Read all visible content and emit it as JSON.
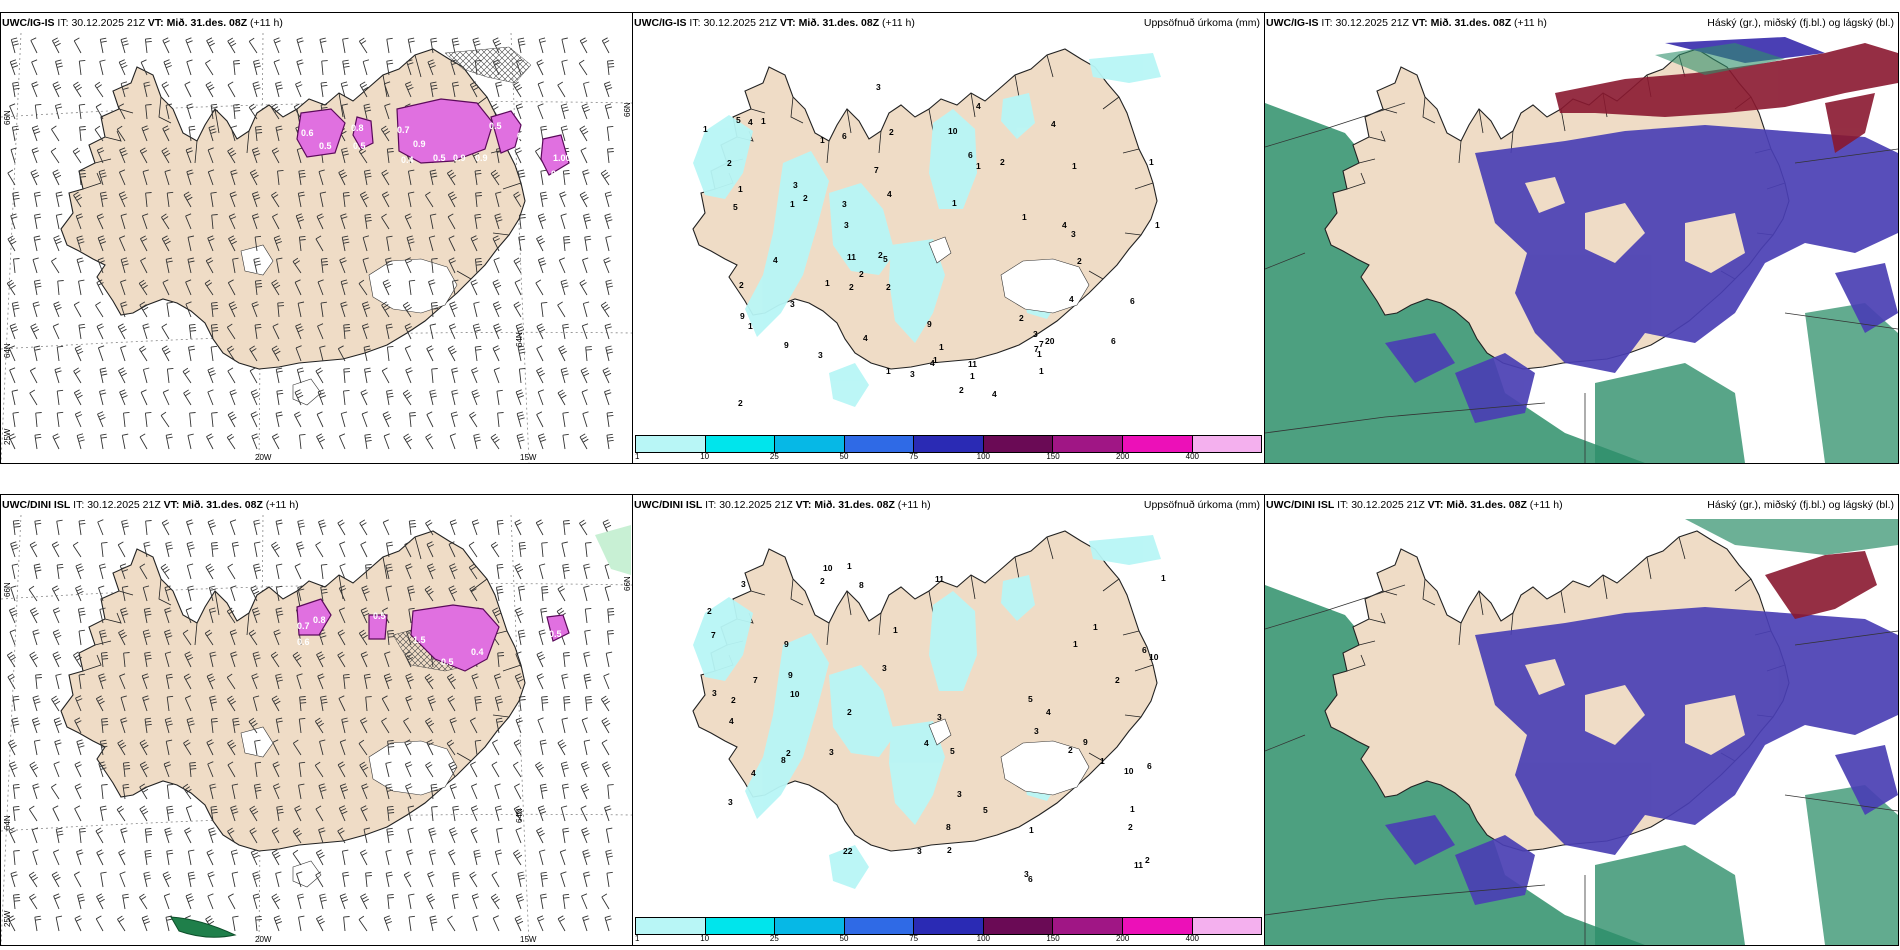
{
  "panels": {
    "p1": {
      "model": "UWC/IG-IS",
      "it_label": "IT:",
      "it_value": "30.12.2025 21Z",
      "vt_label": "VT:",
      "vt_value": "Mið. 31.des. 08Z",
      "lead": "(+11 h)"
    },
    "p2": {
      "model": "UWC/IG-IS",
      "it_label": "IT:",
      "it_value": "30.12.2025 21Z",
      "vt_label": "VT:",
      "vt_value": "Mið. 31.des. 08Z",
      "lead": "(+11 h)",
      "right_title": "Uppsöfnuð úrkoma (mm)"
    },
    "p3": {
      "model": "UWC/IG-IS",
      "it_label": "IT:",
      "it_value": "30.12.2025 21Z",
      "vt_label": "VT:",
      "vt_value": "Mið. 31.des. 08Z",
      "lead": "(+11 h)",
      "right_title": "Háský (gr.), miðský (fj.bl.) og lágský (bl.)"
    },
    "p4": {
      "model": "UWC/DINI ISL",
      "it_label": "IT:",
      "it_value": "30.12.2025 21Z",
      "vt_label": "VT:",
      "vt_value": "Mið. 31.des. 08Z",
      "lead": "(+11 h)"
    },
    "p5": {
      "model": "UWC/DINI ISL",
      "it_label": "IT:",
      "it_value": "30.12.2025 21Z",
      "vt_label": "VT:",
      "vt_value": "Mið. 31.des. 08Z",
      "lead": "(+11 h)",
      "right_title": "Uppsöfnuð úrkoma (mm)"
    },
    "p6": {
      "model": "UWC/DINI ISL",
      "it_label": "IT:",
      "it_value": "30.12.2025 21Z",
      "vt_label": "VT:",
      "vt_value": "Mið. 31.des. 08Z",
      "lead": "(+11 h)",
      "right_title": "Háský (gr.), miðský (fj.bl.) og lágský (bl.)"
    }
  },
  "axes": {
    "lat66": "66N",
    "lat64": "64N",
    "lon25": "25W",
    "lon20": "20W",
    "lon15": "15W"
  },
  "colorbar": {
    "colors": [
      "#b8f6f6",
      "#00e5ec",
      "#06b8e6",
      "#2f6ae6",
      "#2a2ab4",
      "#6a0a55",
      "#a01685",
      "#ec10b8",
      "#f4b0ee"
    ],
    "ticks": [
      "1",
      "10",
      "25",
      "50",
      "75",
      "100",
      "150",
      "200",
      "400"
    ]
  },
  "p1_values": [
    "0.6",
    "0.5",
    "0.8",
    "0.5",
    "0.7",
    "0.9",
    "0.4",
    "0.5",
    "0.9",
    "0.9",
    "0.5",
    "0.6",
    "1.00",
    "0.5"
  ],
  "p4_values": [
    "0.7",
    "0.8",
    "0.6",
    "0.5",
    "1.5",
    "0.5",
    "0.4",
    "0.5"
  ],
  "p2_values": [
    "1",
    "1",
    "1",
    "1",
    "1",
    "1",
    "1",
    "2",
    "4",
    "3",
    "3",
    "6",
    "3",
    "4",
    "4",
    "1",
    "3",
    "7",
    "6",
    "3",
    "1",
    "2",
    "1",
    "3",
    "11",
    "3",
    "4",
    "2",
    "6",
    "3",
    "5",
    "2",
    "4",
    "9",
    "7",
    "7",
    "4",
    "20",
    "5",
    "1",
    "2",
    "9",
    "11",
    "9",
    "5",
    "6",
    "1",
    "2",
    "3",
    "2",
    "4",
    "2",
    "2",
    "1",
    "1",
    "4",
    "2",
    "4",
    "2",
    "1",
    "1",
    "1",
    "2",
    "1",
    "10",
    "4",
    "2",
    "1"
  ],
  "p5_values": [
    "1",
    "1",
    "1",
    "2",
    "1",
    "3",
    "10",
    "2",
    "5",
    "3",
    "11",
    "5",
    "4",
    "6",
    "8",
    "7",
    "4",
    "8",
    "11",
    "2",
    "4",
    "3",
    "10",
    "3",
    "9",
    "6",
    "4",
    "22",
    "3",
    "8",
    "10",
    "7",
    "6",
    "9",
    "3",
    "1",
    "5",
    "2",
    "2",
    "1",
    "3",
    "2",
    "3",
    "3",
    "2",
    "9",
    "10",
    "2",
    "1",
    "2",
    "3",
    "2",
    "1"
  ],
  "colors": {
    "land": "#efdcc6",
    "precip_light": "#b8f6f6",
    "cloud_high": "#8a1830",
    "cloud_mid": "#4a3fb4",
    "cloud_low": "#2e8f6a",
    "cloud_low_light": "#7fe2b4",
    "wind_mag": "#e070e0"
  }
}
